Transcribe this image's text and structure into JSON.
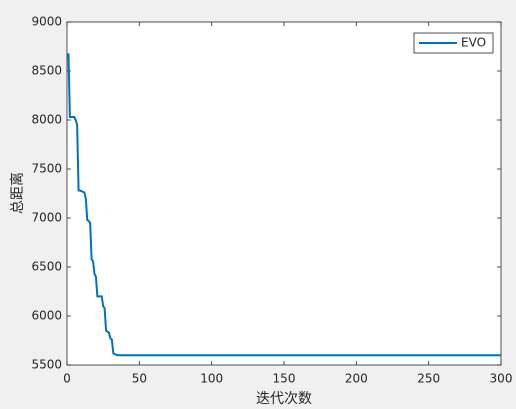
{
  "chart_data": {
    "type": "line",
    "xlabel": "迭代次数",
    "ylabel": "总距离",
    "x": [
      1,
      2,
      5,
      6,
      7,
      8,
      9,
      12,
      13,
      14,
      15,
      16,
      17,
      18,
      19,
      20,
      21,
      24,
      25,
      26,
      27,
      29,
      30,
      31,
      32,
      33,
      35,
      300
    ],
    "series": [
      {
        "name": "EVO",
        "color": "#0072bd",
        "values": [
          8680,
          8030,
          8030,
          8000,
          7950,
          7280,
          7280,
          7260,
          7200,
          6980,
          6970,
          6950,
          6580,
          6560,
          6430,
          6400,
          6200,
          6200,
          6100,
          6080,
          5850,
          5830,
          5770,
          5760,
          5620,
          5610,
          5600,
          5600
        ]
      }
    ],
    "xlim": [
      0,
      300
    ],
    "xticks": [
      0,
      50,
      100,
      150,
      200,
      250,
      300
    ],
    "ylim": [
      5500,
      9000
    ],
    "yticks": [
      5500,
      6000,
      6500,
      7000,
      7500,
      8000,
      8500,
      9000
    ],
    "grid": false,
    "legend": "northeast"
  }
}
